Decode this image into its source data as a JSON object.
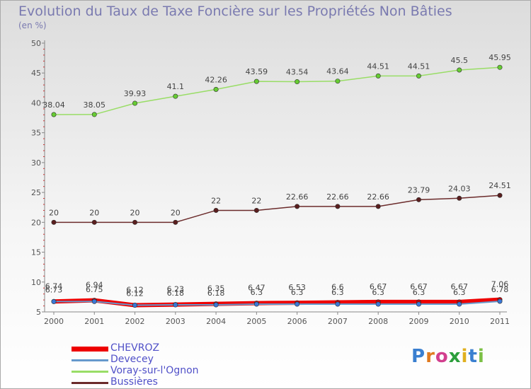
{
  "header": {
    "title": "Evolution du Taux de Taxe Foncière sur les Propriétés Non Bâties",
    "unit": "(en %)"
  },
  "chart_data": {
    "type": "line",
    "title": "Evolution du Taux de Taxe Foncière sur les Propriétés Non Bâties",
    "ylabel": "(en %)",
    "xlabel": "",
    "ylim": [
      5,
      50
    ],
    "yticks": [
      5,
      10,
      15,
      20,
      25,
      30,
      35,
      40,
      45,
      50
    ],
    "x": [
      "2000",
      "2001",
      "2002",
      "2003",
      "2004",
      "2005",
      "2006",
      "2007",
      "2008",
      "2009",
      "2010",
      "2011"
    ],
    "series": [
      {
        "name": "CHEVROZ",
        "color": "#ee0000",
        "point_color": "#cc0000",
        "values": [
          6.74,
          6.94,
          6.12,
          6.23,
          6.35,
          6.47,
          6.53,
          6.6,
          6.67,
          6.67,
          6.67,
          7.06
        ],
        "labels": [
          "6.74",
          "6.94",
          "6.12",
          "6.23",
          "6.35",
          "6.47",
          "6.53",
          "6.6",
          "6.67",
          "6.67",
          "6.67",
          "7.06"
        ]
      },
      {
        "name": "Devecey",
        "color": "#6699cc",
        "point_color": "#3a78d8",
        "values": [
          6.73,
          6.75,
          6.12,
          6.18,
          6.18,
          6.3,
          6.3,
          6.3,
          6.3,
          6.3,
          6.3,
          6.78
        ],
        "labels": [
          "6.73",
          "6.75",
          "6.12",
          "6.18",
          "6.18",
          "6.3",
          "6.3",
          "6.3",
          "6.3",
          "6.3",
          "6.3",
          "6.78"
        ]
      },
      {
        "name": "Voray-sur-l'Ognon",
        "color": "#99dd66",
        "point_color": "#66cc33",
        "values": [
          38.04,
          38.05,
          39.93,
          41.1,
          42.26,
          43.59,
          43.54,
          43.64,
          44.51,
          44.51,
          45.5,
          45.95
        ],
        "labels": [
          "38.04",
          "38.05",
          "39.93",
          "41.1",
          "42.26",
          "43.59",
          "43.54",
          "43.64",
          "44.51",
          "44.51",
          "45.5",
          "45.95"
        ]
      },
      {
        "name": "Bussières",
        "color": "#6b2b2b",
        "point_color": "#5a1e1e",
        "values": [
          20,
          20,
          20,
          20,
          22,
          22,
          22.66,
          22.66,
          22.66,
          23.79,
          24.03,
          24.51
        ],
        "labels": [
          "20",
          "20",
          "20",
          "20",
          "22",
          "22",
          "22.66",
          "22.66",
          "22.66",
          "23.79",
          "24.03",
          "24.51"
        ]
      }
    ]
  },
  "legend": {
    "items": [
      {
        "label": "CHEVROZ",
        "color": "#ee0000"
      },
      {
        "label": "Devecey",
        "color": "#6699cc"
      },
      {
        "label": "Voray-sur-l'Ognon",
        "color": "#99dd66"
      },
      {
        "label": "Bussières",
        "color": "#6b2b2b"
      }
    ]
  },
  "brand": {
    "logo_letters": [
      "P",
      "r",
      "o",
      "x",
      "i",
      "t",
      "i"
    ],
    "logo_colors": [
      "#3a7fd0",
      "#e07a1f",
      "#d23f8e",
      "#2c9e3c",
      "#e0b020",
      "#3a7fd0",
      "#7cc046"
    ]
  }
}
